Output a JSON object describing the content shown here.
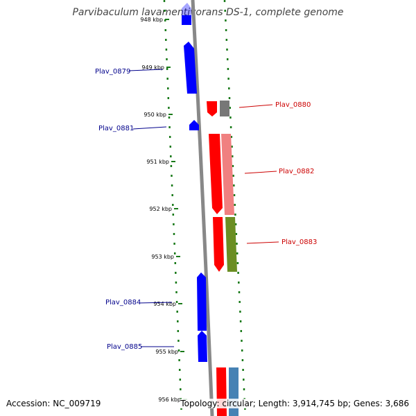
{
  "header": {
    "title": "Parvibaculum lavamentivorans DS-1, complete genome"
  },
  "footer": {
    "accession": "Accession: NC_009719",
    "topology": "Topology: circular; Length: 3,914,745 bp; Genes: 3,686"
  },
  "colors": {
    "forward_strand": "#0000ff",
    "reverse_strand": "#ff0000",
    "forward_label": "#00008b",
    "reverse_label": "#cc0000",
    "tick": "#1a7a1a",
    "backbone": "#888888"
  },
  "scale_ticks": [
    {
      "label": "948 kbp"
    },
    {
      "label": "949 kbp"
    },
    {
      "label": "950 kbp"
    },
    {
      "label": "951 kbp"
    },
    {
      "label": "952 kbp"
    },
    {
      "label": "953 kbp"
    },
    {
      "label": "954 kbp"
    },
    {
      "label": "955 kbp"
    },
    {
      "label": "956 kbp"
    }
  ],
  "genes": [
    {
      "name": "Plav_0879",
      "strand": "forward"
    },
    {
      "name": "Plav_0880",
      "strand": "reverse"
    },
    {
      "name": "Plav_0881",
      "strand": "forward"
    },
    {
      "name": "Plav_0882",
      "strand": "reverse"
    },
    {
      "name": "Plav_0883",
      "strand": "reverse"
    },
    {
      "name": "Plav_0884",
      "strand": "forward"
    },
    {
      "name": "Plav_0885",
      "strand": "forward"
    }
  ]
}
